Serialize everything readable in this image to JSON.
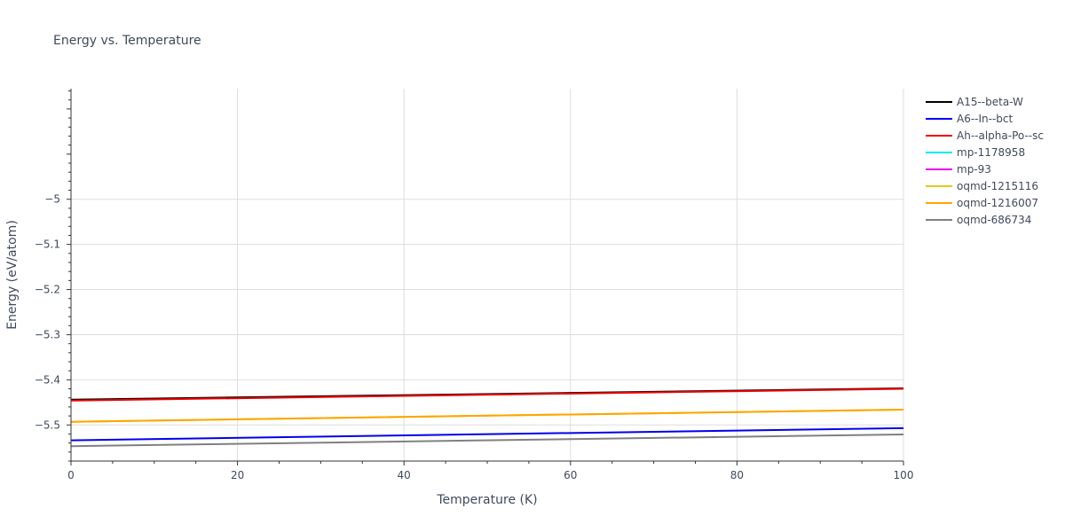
{
  "chart_data": {
    "type": "line",
    "title": "Energy vs. Temperature",
    "xlabel": "Temperature (K)",
    "ylabel": "Energy (eV/atom)",
    "xlim": [
      0,
      100
    ],
    "ylim": [
      -5.58,
      -4.755
    ],
    "x_ticks": [
      0,
      20,
      40,
      60,
      80,
      100
    ],
    "x_tick_labels": [
      "0",
      "20",
      "40",
      "60",
      "80",
      "100"
    ],
    "y_ticks": [
      -5,
      -5.1,
      -5.2,
      -5.3,
      -5.4,
      -5.5
    ],
    "y_tick_labels": [
      "−5",
      "−5.1",
      "−5.2",
      "−5.3",
      "−5.4",
      "−5.5"
    ],
    "grid": true,
    "legend_position": "top-right",
    "series": [
      {
        "name": "A15--beta-W",
        "color": "#000000",
        "x": [
          0,
          100
        ],
        "y": [
          -5.444,
          -5.419
        ]
      },
      {
        "name": "A6--In--bct",
        "color": "#0000ee",
        "x": [
          0,
          100
        ],
        "y": [
          -5.534,
          -5.507
        ]
      },
      {
        "name": "Ah--alpha-Po--sc",
        "color": "#ee0000",
        "x": [
          0,
          100
        ],
        "y": [
          -5.446,
          -5.42
        ]
      },
      {
        "name": "mp-1178958",
        "color": "#00eeee",
        "x": [],
        "y": []
      },
      {
        "name": "mp-93",
        "color": "#ee00ee",
        "x": [],
        "y": []
      },
      {
        "name": "oqmd-1215116",
        "color": "#e6c619",
        "x": [
          0,
          100
        ],
        "y": [
          -5.493,
          -5.466
        ]
      },
      {
        "name": "oqmd-1216007",
        "color": "#ffa500",
        "x": [
          0,
          100
        ],
        "y": [
          -5.493,
          -5.466
        ]
      },
      {
        "name": "oqmd-686734",
        "color": "#808080",
        "x": [
          0,
          100
        ],
        "y": [
          -5.547,
          -5.521
        ]
      }
    ]
  }
}
